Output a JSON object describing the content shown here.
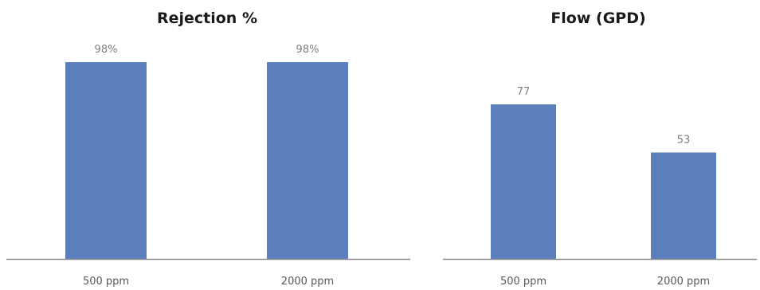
{
  "chart_data": [
    {
      "type": "bar",
      "title": "Rejection %",
      "categories": [
        "500 ppm",
        "2000 ppm"
      ],
      "values": [
        98,
        98
      ],
      "data_labels": [
        "98%",
        "98%"
      ],
      "xlabel": "",
      "ylabel": "",
      "ylim": [
        0,
        100
      ],
      "grid": false,
      "bar_color": "#5b7fbd",
      "axis_color": "#8c8c8c"
    },
    {
      "type": "bar",
      "title": "Flow (GPD)",
      "categories": [
        "500 ppm",
        "2000 ppm"
      ],
      "values": [
        77,
        53
      ],
      "data_labels": [
        "77",
        "53"
      ],
      "xlabel": "",
      "ylabel": "",
      "ylim": [
        0,
        100
      ],
      "grid": false,
      "bar_color": "#5b7fbd",
      "axis_color": "#8c8c8c"
    }
  ]
}
